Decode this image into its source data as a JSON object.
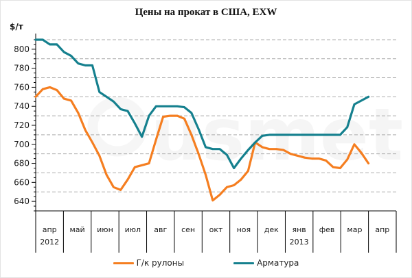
{
  "title": "Цены на прокат в США, EXW",
  "y_axis_unit": "$/т",
  "watermark_text": "usmet",
  "legend": {
    "items": [
      {
        "label": "Г/к рулоны",
        "color": "#F57E20"
      },
      {
        "label": "Арматура",
        "color": "#15808E"
      }
    ]
  },
  "chart_data": {
    "type": "line",
    "title": "Цены на прокат в США, EXW",
    "xlabel": "",
    "ylabel": "$/т",
    "ylim": [
      630,
      810
    ],
    "ytick_step": 20,
    "yminor_step": 5,
    "grid": "dashed horizontal",
    "legend_position": "bottom",
    "categories": [
      "апр",
      "май",
      "июн",
      "июл",
      "авг",
      "сен",
      "окт",
      "ноя",
      "дек",
      "янв",
      "фев",
      "мар",
      "апр"
    ],
    "category_year_labels": [
      {
        "category_index": 0,
        "label": "2012"
      },
      {
        "category_index": 9,
        "label": "2013"
      }
    ],
    "points_per_month": 4,
    "note": "weekly data, апр 2012 – начало апр 2013; последний месяц (апр 2013) без данных",
    "series": [
      {
        "name": "Г/к рулоны",
        "color": "#F57E20",
        "values": [
          750,
          758,
          760,
          757,
          748,
          746,
          733,
          715,
          702,
          688,
          668,
          655,
          652,
          663,
          676,
          678,
          680,
          705,
          729,
          730,
          730,
          727,
          710,
          690,
          668,
          641,
          647,
          655,
          657,
          663,
          672,
          702,
          697,
          695,
          695,
          694,
          690,
          688,
          686,
          685,
          685,
          683,
          676,
          675,
          684,
          700,
          691,
          680
        ]
      },
      {
        "name": "Арматура",
        "color": "#15808E",
        "values": [
          810,
          810,
          805,
          805,
          797,
          793,
          785,
          783,
          783,
          755,
          750,
          745,
          737,
          735,
          722,
          708,
          730,
          740,
          740,
          740,
          740,
          739,
          733,
          716,
          697,
          695,
          695,
          689,
          675,
          685,
          694,
          702,
          709,
          710,
          710,
          710,
          710,
          710,
          710,
          710,
          710,
          710,
          710,
          710,
          718,
          742,
          746,
          750
        ]
      }
    ]
  }
}
